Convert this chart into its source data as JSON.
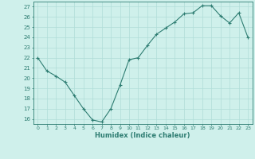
{
  "x": [
    0,
    1,
    2,
    3,
    4,
    5,
    6,
    7,
    8,
    9,
    10,
    11,
    12,
    13,
    14,
    15,
    16,
    17,
    18,
    19,
    20,
    21,
    22,
    23
  ],
  "y": [
    22.0,
    20.7,
    20.2,
    19.6,
    18.3,
    17.0,
    15.9,
    15.7,
    17.0,
    19.3,
    21.8,
    22.0,
    23.2,
    24.3,
    24.9,
    25.5,
    26.3,
    26.4,
    27.1,
    27.1,
    26.1,
    25.4,
    26.4,
    24.0
  ],
  "xlabel": "Humidex (Indice chaleur)",
  "ylim": [
    15.5,
    27.5
  ],
  "xlim": [
    -0.5,
    23.5
  ],
  "yticks": [
    16,
    17,
    18,
    19,
    20,
    21,
    22,
    23,
    24,
    25,
    26,
    27
  ],
  "xticks": [
    0,
    1,
    2,
    3,
    4,
    5,
    6,
    7,
    8,
    9,
    10,
    11,
    12,
    13,
    14,
    15,
    16,
    17,
    18,
    19,
    20,
    21,
    22,
    23
  ],
  "line_color": "#2e7d72",
  "marker_color": "#2e7d72",
  "bg_color": "#cff0eb",
  "grid_color": "#b0ddd8",
  "axis_color": "#2e7d72",
  "tick_color": "#2e7d72",
  "xlabel_color": "#2e7d72"
}
